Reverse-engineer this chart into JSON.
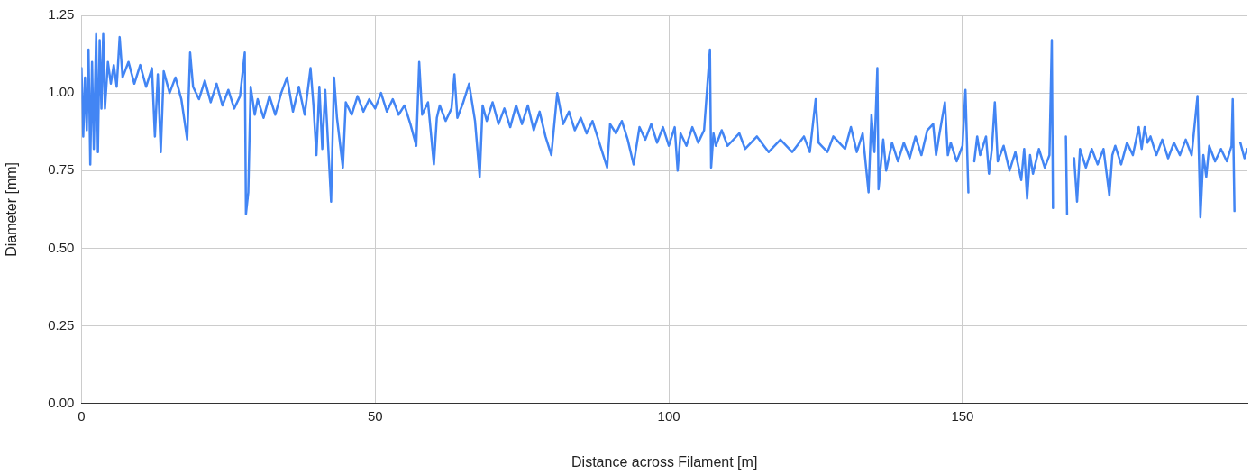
{
  "chart_data": {
    "type": "line",
    "xlabel": "Distance across Filament [m]",
    "ylabel": "Diameter [mm]",
    "xlim": [
      0,
      198.5
    ],
    "xticks": [
      0,
      50,
      100,
      150
    ],
    "ylim": [
      0,
      1.25
    ],
    "yticks": [
      {
        "value": 0,
        "label": "0.00"
      },
      {
        "value": 0.25,
        "label": "0.25"
      },
      {
        "value": 0.5,
        "label": "0.50"
      },
      {
        "value": 0.75,
        "label": "0.75"
      },
      {
        "value": 1,
        "label": "1.00"
      },
      {
        "value": 1.25,
        "label": "1.25"
      }
    ],
    "grid": true,
    "legend": false,
    "marker": "none",
    "line_style": "solid",
    "x": [
      0,
      0.3,
      0.6,
      0.9,
      1.2,
      1.5,
      1.8,
      2.1,
      2.5,
      2.8,
      3.1,
      3.4,
      3.7,
      4,
      4.5,
      5,
      5.5,
      6,
      6.5,
      7,
      8,
      9,
      10,
      11,
      12,
      12.5,
      13,
      13.5,
      14,
      15,
      16,
      17,
      18,
      18.5,
      19,
      20,
      21,
      22,
      23,
      24,
      25,
      26,
      27,
      27.8,
      28,
      28.4,
      28.8,
      29.5,
      30,
      31,
      32,
      33,
      34,
      35,
      36,
      37,
      38,
      39,
      39.5,
      40,
      40.5,
      41,
      41.5,
      42.5,
      43,
      43.5,
      44.5,
      45,
      46,
      47,
      48,
      49,
      50,
      51,
      52,
      53,
      54,
      55,
      56,
      57,
      57.5,
      58,
      59,
      60,
      60.5,
      61,
      62,
      63,
      63.5,
      64,
      65,
      66,
      67,
      67.8,
      68.3,
      69,
      70,
      71,
      72,
      73,
      74,
      75,
      76,
      77,
      78,
      79,
      80,
      81,
      82,
      83,
      84,
      85,
      86,
      87,
      88,
      89.5,
      90,
      91,
      92,
      93,
      94,
      95,
      96,
      97,
      98,
      99,
      100,
      101,
      101.5,
      102,
      103,
      104,
      105,
      106,
      107,
      107.2,
      107.6,
      108,
      109,
      110,
      112,
      113,
      115,
      117,
      119,
      121,
      123,
      124,
      125,
      125.5,
      127,
      128,
      130,
      131,
      132,
      133,
      134,
      134.5,
      135,
      135.5,
      135.7,
      136.5,
      137,
      138,
      139,
      140,
      141,
      142,
      143,
      144,
      145,
      145.5,
      146,
      147,
      147.5,
      148,
      149,
      150,
      150.5,
      151,
      151.3,
      152,
      152.5,
      153,
      154,
      154.5,
      155,
      155.5,
      156,
      157,
      158,
      159,
      160,
      160.5,
      161,
      161.5,
      162,
      163,
      164,
      164.8,
      165.2,
      165.4,
      165.7,
      167.6,
      167.8,
      168,
      169,
      169.5,
      170,
      171,
      172,
      173,
      174,
      175,
      175.5,
      176,
      177,
      178,
      179,
      180,
      180.5,
      181,
      181.5,
      182,
      183,
      184,
      185,
      186,
      187,
      188,
      189,
      190,
      190.5,
      191,
      191.5,
      192,
      193,
      194,
      195,
      195.8,
      196,
      196.3,
      196.6,
      197.3,
      198,
      198.5
    ],
    "series": [
      {
        "color": "#4285f4",
        "values": [
          1.08,
          0.86,
          1.05,
          0.88,
          1.14,
          0.77,
          1.1,
          0.82,
          1.19,
          0.81,
          1.17,
          0.95,
          1.19,
          0.95,
          1.1,
          1.03,
          1.09,
          1.02,
          1.18,
          1.05,
          1.1,
          1.03,
          1.09,
          1.02,
          1.08,
          0.86,
          1.06,
          0.81,
          1.07,
          1.0,
          1.05,
          0.98,
          0.85,
          1.13,
          1.02,
          0.98,
          1.04,
          0.97,
          1.03,
          0.96,
          1.01,
          0.95,
          0.99,
          1.13,
          0.61,
          0.68,
          1.02,
          0.93,
          0.98,
          0.92,
          0.99,
          0.93,
          1.0,
          1.05,
          0.94,
          1.02,
          0.93,
          1.08,
          0.96,
          0.8,
          1.02,
          0.82,
          1.01,
          0.65,
          1.05,
          0.92,
          0.76,
          0.97,
          0.93,
          0.99,
          0.94,
          0.98,
          0.95,
          1.0,
          0.94,
          0.98,
          0.93,
          0.96,
          0.9,
          0.83,
          1.1,
          0.93,
          0.97,
          0.77,
          0.92,
          0.96,
          0.91,
          0.95,
          1.06,
          0.92,
          0.97,
          1.03,
          0.91,
          0.73,
          0.96,
          0.91,
          0.97,
          0.9,
          0.95,
          0.89,
          0.96,
          0.9,
          0.96,
          0.88,
          0.94,
          0.86,
          0.8,
          1.0,
          0.9,
          0.94,
          0.88,
          0.92,
          0.87,
          0.91,
          0.85,
          0.76,
          0.9,
          0.87,
          0.91,
          0.85,
          0.77,
          0.89,
          0.85,
          0.9,
          0.84,
          0.89,
          0.83,
          0.89,
          0.75,
          0.87,
          0.83,
          0.89,
          0.84,
          0.88,
          1.14,
          0.76,
          0.87,
          0.83,
          0.88,
          0.83,
          0.87,
          0.82,
          0.86,
          0.81,
          0.85,
          0.81,
          0.86,
          0.81,
          0.98,
          0.84,
          0.81,
          0.86,
          0.82,
          0.89,
          0.81,
          0.87,
          0.68,
          0.93,
          0.81,
          1.08,
          0.69,
          0.85,
          0.75,
          0.84,
          0.78,
          0.84,
          0.79,
          0.86,
          0.8,
          0.88,
          0.9,
          0.8,
          0.86,
          0.97,
          0.8,
          0.84,
          0.78,
          0.83,
          1.01,
          0.68,
          null,
          0.78,
          0.86,
          0.8,
          0.86,
          0.74,
          0.82,
          0.97,
          0.78,
          0.83,
          0.75,
          0.81,
          0.72,
          0.82,
          0.66,
          0.8,
          0.74,
          0.82,
          0.76,
          0.8,
          1.17,
          0.63,
          null,
          0.86,
          0.61,
          null,
          0.79,
          0.65,
          0.82,
          0.76,
          0.82,
          0.77,
          0.82,
          0.67,
          0.8,
          0.83,
          0.77,
          0.84,
          0.8,
          0.89,
          0.82,
          0.89,
          0.84,
          0.86,
          0.8,
          0.85,
          0.79,
          0.84,
          0.8,
          0.85,
          0.8,
          0.99,
          0.6,
          0.8,
          0.73,
          0.83,
          0.78,
          0.82,
          0.78,
          0.83,
          0.98,
          0.62,
          null,
          0.84,
          0.79,
          0.82
        ]
      }
    ]
  }
}
